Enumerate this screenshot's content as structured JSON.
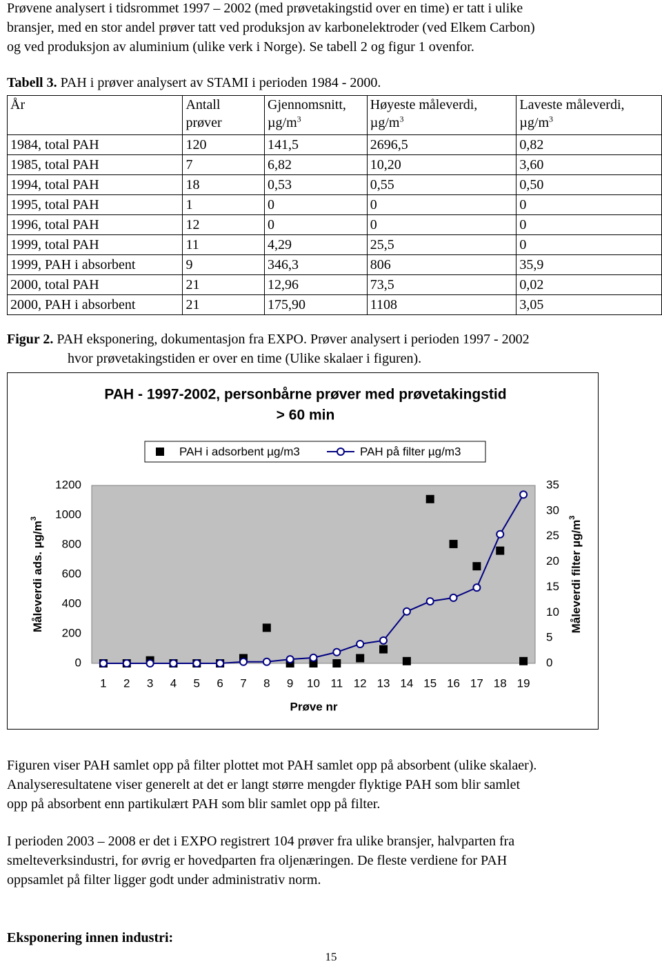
{
  "intro": {
    "lines": [
      "Prøvene analysert i tidsrommet 1997 – 2002 (med prøvetakingstid over en time) er tatt i ulike",
      "bransjer, med en stor andel prøver tatt ved produksjon av karbonelektroder (ved Elkem Carbon)",
      "og ved produksjon av aluminium (ulike verk i Norge). Se tabell 2 og figur 1 ovenfor."
    ]
  },
  "table": {
    "caption": {
      "label": "Tabell 3.",
      "text": "PAH i prøver analysert av STAMI i perioden 1984 - 2000."
    },
    "header": [
      {
        "lines": [
          "År"
        ]
      },
      {
        "lines": [
          "Antall",
          "prøver"
        ]
      },
      {
        "lines": [
          "Gjennomsnitt,",
          "µg/m"
        ],
        "sup": "3"
      },
      {
        "lines": [
          "Høyeste måleverdi,",
          "µg/m"
        ],
        "sup": "3"
      },
      {
        "lines": [
          "Laveste måleverdi,",
          "µg/m"
        ],
        "sup": "3"
      }
    ],
    "rows": [
      [
        "1984, total PAH",
        "120",
        "141,5",
        "2696,5",
        "0,82"
      ],
      [
        "1985, total PAH",
        "7",
        "6,82",
        "10,20",
        "3,60"
      ],
      [
        "1994, total PAH",
        "18",
        "0,53",
        "0,55",
        "0,50"
      ],
      [
        "1995, total PAH",
        "1",
        "0",
        "0",
        "0"
      ],
      [
        "1996, total PAH",
        "12",
        "0",
        "0",
        "0"
      ],
      [
        "1999, total PAH",
        "11",
        "4,29",
        "25,5",
        "0"
      ],
      [
        "1999, PAH i absorbent",
        "9",
        "346,3",
        "806",
        "35,9"
      ],
      [
        "2000, total PAH",
        "21",
        "12,96",
        "73,5",
        "0,02"
      ],
      [
        "2000, PAH i absorbent",
        "21",
        "175,90",
        "1108",
        "3,05"
      ]
    ]
  },
  "figure_caption": {
    "label": "Figur 2.",
    "lines": [
      "PAH eksponering, dokumentasjon fra EXPO. Prøver analysert i perioden 1997 - 2002",
      "hvor prøvetakingstiden er over en time (Ulike skalaer i figuren)."
    ]
  },
  "chart_data": {
    "type": "combo",
    "title": [
      "PAH - 1997-2002, personbårne prøver med prøvetakingstid",
      "> 60 min"
    ],
    "x_label": "Prøve nr",
    "y_label": {
      "text": "Måleverdi ads. µg/m",
      "sup": "3"
    },
    "y2_label": {
      "text": "Måleverdi filter µg/m",
      "sup": "3"
    },
    "x": [
      1,
      2,
      3,
      4,
      5,
      6,
      7,
      8,
      9,
      10,
      11,
      12,
      13,
      14,
      15,
      16,
      17,
      18,
      19
    ],
    "xlim": [
      0.5,
      19.5
    ],
    "xticks": [
      1,
      2,
      3,
      4,
      5,
      6,
      7,
      8,
      9,
      10,
      11,
      12,
      13,
      14,
      15,
      16,
      17,
      18,
      19
    ],
    "ylim": [
      0,
      1200
    ],
    "yticks": [
      0,
      200,
      400,
      600,
      800,
      1000,
      1200
    ],
    "y2lim": [
      0,
      35
    ],
    "y2ticks": [
      0,
      5,
      10,
      15,
      20,
      25,
      30,
      35
    ],
    "grid": false,
    "legend": "top",
    "series": [
      {
        "name": "PAH i adsorbent µg/m3",
        "type": "scatter",
        "marker": "square",
        "color": "#000000",
        "values": [
          0,
          0,
          20,
          0,
          0,
          0,
          35,
          240,
          0,
          0,
          0,
          35,
          95,
          15,
          1108,
          805,
          655,
          760,
          15
        ]
      },
      {
        "name": "PAH på filter µg/m3",
        "type": "line",
        "marker": "circle",
        "color": "#000080",
        "axis": "y2",
        "values": [
          0,
          0,
          0,
          0,
          0,
          0,
          0.3,
          0.3,
          0.8,
          1.1,
          2.2,
          3.8,
          4.5,
          10.2,
          12.2,
          12.9,
          14.9,
          25.4,
          33.2
        ]
      }
    ]
  },
  "paragraphs": [
    {
      "lines": [
        "Figuren viser PAH samlet opp på filter plottet mot PAH samlet opp på absorbent (ulike skalaer).",
        "Analyseresultatene viser generelt at det er langt større mengder flyktige PAH som blir samlet",
        "opp på absorbent enn partikulært PAH som blir samlet opp på filter."
      ]
    },
    {
      "lines": [
        "I perioden 2003 – 2008 er det i EXPO registrert 104 prøver fra ulike bransjer, halvparten fra",
        "smelteverksindustri, for øvrig er hovedparten fra oljenæringen. De fleste verdiene for PAH",
        "oppsamlet på filter ligger godt under administrativ norm."
      ]
    }
  ],
  "heading": "Eksponering innen industri:",
  "page_number": "15"
}
